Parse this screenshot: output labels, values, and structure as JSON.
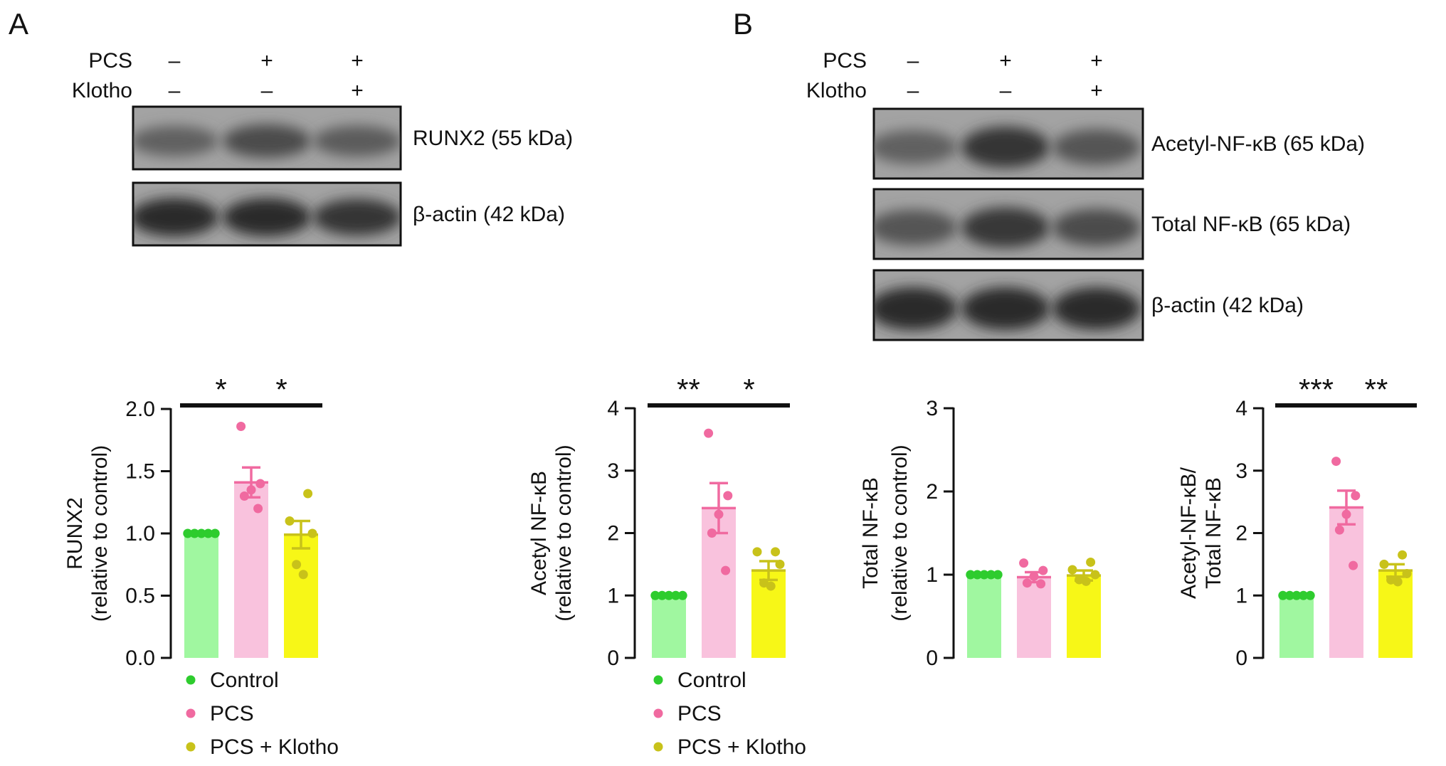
{
  "panels": [
    {
      "letter": "A",
      "conditions": [
        {
          "label": "PCS",
          "signs": [
            "–",
            "+",
            "+"
          ]
        },
        {
          "label": "Klotho",
          "signs": [
            "–",
            "–",
            "+"
          ]
        }
      ],
      "blots": [
        {
          "label": "RUNX2 (55 kDa)",
          "intensity": [
            0.45,
            0.62,
            0.48
          ]
        },
        {
          "label": "β-actin (42 kDa)",
          "intensity": [
            0.9,
            0.88,
            0.8
          ]
        }
      ]
    },
    {
      "letter": "B",
      "conditions": [
        {
          "label": "PCS",
          "signs": [
            "–",
            "+",
            "+"
          ]
        },
        {
          "label": "Klotho",
          "signs": [
            "–",
            "–",
            "+"
          ]
        }
      ],
      "blots": [
        {
          "label": "Acetyl-NF-κB (65 kDa)",
          "intensity": [
            0.45,
            0.82,
            0.55
          ]
        },
        {
          "label": "Total NF-κB (65 kDa)",
          "intensity": [
            0.55,
            0.78,
            0.62
          ]
        },
        {
          "label": "β-actin (42 kDa)",
          "intensity": [
            0.9,
            0.9,
            0.88
          ]
        }
      ]
    }
  ],
  "legend": {
    "entries": [
      {
        "label": "Control",
        "color": "#2ecc2e"
      },
      {
        "label": "PCS",
        "color": "#f06aa0"
      },
      {
        "label": "PCS + Klotho",
        "color": "#c8c21a"
      }
    ]
  },
  "colors": {
    "bar_fill": [
      "#a0f7a0",
      "#f9c2dd",
      "#f7f717"
    ],
    "point": [
      "#2ecc2e",
      "#f06aa0",
      "#c8c21a"
    ],
    "error": [
      "#2ecc2e",
      "#f06aa0",
      "#c8c21a"
    ]
  },
  "chart_data": [
    {
      "type": "bar",
      "ylabel_lines": [
        "RUNX2",
        "(relative to control)"
      ],
      "ylim": [
        0,
        2.0
      ],
      "yticks": [
        "0.0",
        "0.5",
        "1.0",
        "1.5",
        "2.0"
      ],
      "categories": [
        "Control",
        "PCS",
        "PCS + Klotho"
      ],
      "values": [
        1.0,
        1.41,
        0.99
      ],
      "errors": [
        0,
        0.12,
        0.11
      ],
      "points": [
        [
          1,
          1,
          1,
          1,
          1
        ],
        [
          1.86,
          1.4,
          1.35,
          1.3,
          1.2
        ],
        [
          1.32,
          1.1,
          1.0,
          0.75,
          0.67
        ]
      ],
      "significance": [
        {
          "from": 0,
          "to": 1,
          "label": "*"
        },
        {
          "from": 1,
          "to": 2,
          "label": "*"
        }
      ],
      "legend": true
    },
    {
      "type": "bar",
      "ylabel_lines": [
        "Acetyl NF-κB",
        "(relative to control)"
      ],
      "ylim": [
        0,
        4
      ],
      "yticks": [
        "0",
        "1",
        "2",
        "3",
        "4"
      ],
      "categories": [
        "Control",
        "PCS",
        "PCS + Klotho"
      ],
      "values": [
        1.0,
        2.4,
        1.4
      ],
      "errors": [
        0,
        0.4,
        0.15
      ],
      "points": [
        [
          1,
          1,
          1,
          1,
          1
        ],
        [
          3.6,
          2.6,
          2.3,
          2.0,
          1.4
        ],
        [
          1.7,
          1.7,
          1.5,
          1.2,
          1.15
        ]
      ],
      "significance": [
        {
          "from": 0,
          "to": 1,
          "label": "**"
        },
        {
          "from": 1,
          "to": 2,
          "label": "*"
        }
      ],
      "legend": true
    },
    {
      "type": "bar",
      "ylabel_lines": [
        "Total NF-κB",
        "(relative to control)"
      ],
      "ylim": [
        0,
        3
      ],
      "yticks": [
        "0",
        "1",
        "2",
        "3"
      ],
      "categories": [
        "Control",
        "PCS",
        "PCS + Klotho"
      ],
      "values": [
        1.0,
        0.97,
        0.99
      ],
      "errors": [
        0,
        0.06,
        0.06
      ],
      "points": [
        [
          1,
          1,
          1,
          1,
          1
        ],
        [
          1.14,
          1.05,
          0.98,
          0.9,
          0.89
        ],
        [
          1.15,
          1.06,
          1.0,
          0.94,
          0.92
        ]
      ],
      "significance": [],
      "legend": false
    },
    {
      "type": "bar",
      "ylabel_lines": [
        "Acetyl-NF-κB/",
        "Total NF-κB"
      ],
      "ylim": [
        0,
        4
      ],
      "yticks": [
        "0",
        "1",
        "2",
        "3",
        "4"
      ],
      "categories": [
        "Control",
        "PCS",
        "PCS + Klotho"
      ],
      "values": [
        1.0,
        2.41,
        1.4
      ],
      "errors": [
        0,
        0.27,
        0.1
      ],
      "points": [
        [
          1,
          1,
          1,
          1,
          1
        ],
        [
          3.15,
          2.6,
          2.3,
          2.05,
          1.48
        ],
        [
          1.65,
          1.5,
          1.35,
          1.25,
          1.22
        ]
      ],
      "significance": [
        {
          "from": 0,
          "to": 1,
          "label": "***"
        },
        {
          "from": 1,
          "to": 2,
          "label": "**"
        }
      ],
      "legend": false
    }
  ]
}
